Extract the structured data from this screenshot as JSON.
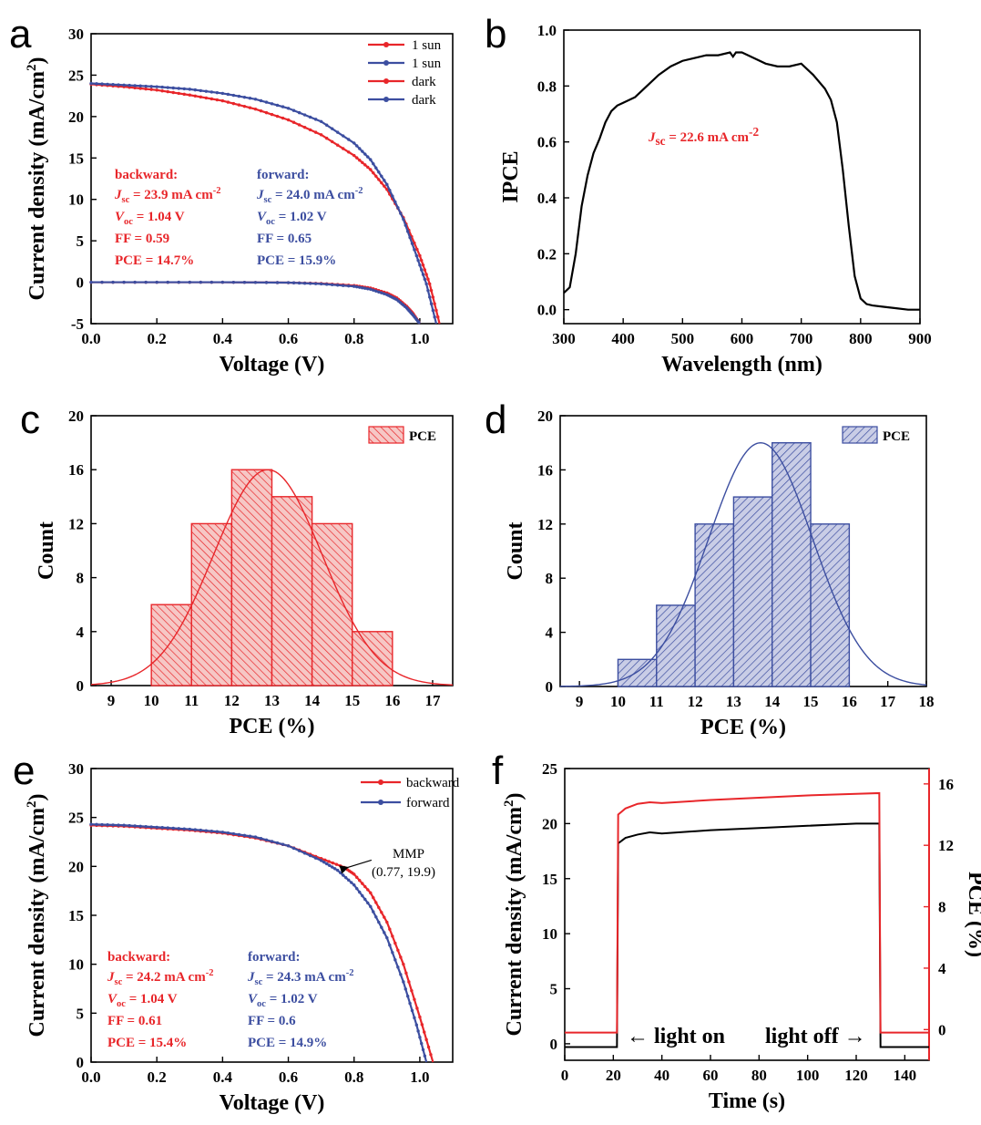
{
  "panel_labels": [
    "a",
    "b",
    "c",
    "d",
    "e",
    "f"
  ],
  "colors": {
    "red": "#e8262a",
    "blue": "#3c4ea0",
    "black": "#000000"
  },
  "chart_data": [
    {
      "id": "a",
      "type": "line",
      "xlabel": "Voltage (V)",
      "ylabel": "Current density (mA/cm²)",
      "xlim": [
        0,
        1.1
      ],
      "ylim": [
        -5,
        30
      ],
      "xticks": [
        "0.0",
        "0.2",
        "0.4",
        "0.6",
        "0.8",
        "1.0"
      ],
      "yticks": [
        "-5",
        "0",
        "5",
        "10",
        "15",
        "20",
        "25",
        "30"
      ],
      "legend": [
        "1 sun",
        "1 sun",
        "dark",
        "dark"
      ],
      "series": [
        {
          "name": "1 sun",
          "color": "#e8262a",
          "x": [
            0,
            0.1,
            0.2,
            0.3,
            0.4,
            0.5,
            0.6,
            0.7,
            0.8,
            0.85,
            0.9,
            0.95,
            1.0,
            1.03,
            1.06
          ],
          "y": [
            23.9,
            23.6,
            23.2,
            22.6,
            21.9,
            20.9,
            19.6,
            17.8,
            15.3,
            13.6,
            11.2,
            7.8,
            3.2,
            -0.2,
            -5
          ]
        },
        {
          "name": "1 sun",
          "color": "#3c4ea0",
          "x": [
            0,
            0.1,
            0.2,
            0.3,
            0.4,
            0.5,
            0.6,
            0.7,
            0.8,
            0.85,
            0.9,
            0.95,
            0.99,
            1.02,
            1.05
          ],
          "y": [
            24.0,
            23.8,
            23.6,
            23.3,
            22.8,
            22.1,
            21.0,
            19.4,
            16.8,
            14.8,
            11.8,
            7.6,
            3.2,
            -0.2,
            -5
          ]
        },
        {
          "name": "dark",
          "color": "#e8262a",
          "x": [
            0,
            0.2,
            0.4,
            0.6,
            0.7,
            0.8,
            0.85,
            0.9,
            0.93,
            0.96,
            0.98,
            1.0
          ],
          "y": [
            0,
            0,
            0,
            -0.05,
            -0.15,
            -0.4,
            -0.7,
            -1.3,
            -1.9,
            -2.9,
            -3.8,
            -5
          ]
        },
        {
          "name": "dark",
          "color": "#3c4ea0",
          "x": [
            0,
            0.2,
            0.4,
            0.6,
            0.7,
            0.8,
            0.85,
            0.9,
            0.93,
            0.96,
            0.98,
            1.0
          ],
          "y": [
            0,
            0,
            0,
            -0.05,
            -0.2,
            -0.5,
            -0.85,
            -1.5,
            -2.1,
            -3.1,
            -4.0,
            -5
          ]
        }
      ],
      "annotations": {
        "backward": [
          "backward:",
          "J",
          "sc",
          " = 23.9 mA cm",
          "-2",
          "V",
          "oc",
          " = 1.04 V",
          "FF = 0.59",
          "PCE = 14.7%"
        ],
        "forward": [
          "forward:",
          "J",
          "sc",
          " = 24.0 mA cm",
          "-2",
          "V",
          "oc",
          " = 1.02 V",
          "FF = 0.65",
          "PCE = 15.9%"
        ]
      }
    },
    {
      "id": "b",
      "type": "line",
      "xlabel": "Wavelength (nm)",
      "ylabel": "IPCE",
      "xlim": [
        300,
        900
      ],
      "ylim": [
        -0.05,
        1.0
      ],
      "xticks": [
        "300",
        "400",
        "500",
        "600",
        "700",
        "800",
        "900"
      ],
      "yticks": [
        "0.0",
        "0.2",
        "0.4",
        "0.6",
        "0.8",
        "1.0"
      ],
      "series": [
        {
          "name": "",
          "color": "#000000",
          "x": [
            300,
            310,
            320,
            330,
            340,
            350,
            360,
            370,
            380,
            390,
            400,
            420,
            440,
            460,
            480,
            500,
            520,
            540,
            560,
            580,
            585,
            590,
            600,
            620,
            640,
            660,
            680,
            700,
            710,
            720,
            740,
            750,
            760,
            770,
            780,
            790,
            800,
            810,
            820,
            840,
            860,
            880,
            900
          ],
          "y": [
            0.06,
            0.08,
            0.2,
            0.37,
            0.48,
            0.56,
            0.61,
            0.67,
            0.71,
            0.73,
            0.74,
            0.76,
            0.8,
            0.84,
            0.87,
            0.89,
            0.9,
            0.91,
            0.91,
            0.92,
            0.905,
            0.92,
            0.92,
            0.9,
            0.88,
            0.87,
            0.87,
            0.88,
            0.86,
            0.84,
            0.79,
            0.75,
            0.67,
            0.5,
            0.3,
            0.12,
            0.04,
            0.02,
            0.015,
            0.01,
            0.005,
            0.0,
            0.0
          ]
        }
      ],
      "annotation": [
        "J",
        "sc",
        " = 22.6 mA cm",
        "-2"
      ]
    },
    {
      "id": "c",
      "type": "bar",
      "xlabel": "PCE (%)",
      "ylabel": "Count",
      "xlim": [
        8.5,
        17.5
      ],
      "ylim": [
        0,
        20
      ],
      "xticks": [
        "9",
        "10",
        "11",
        "12",
        "13",
        "14",
        "15",
        "16",
        "17"
      ],
      "yticks": [
        "0",
        "4",
        "8",
        "12",
        "16",
        "20"
      ],
      "legend": [
        "PCE"
      ],
      "bin_edges": [
        10,
        11,
        12,
        13,
        14,
        15,
        16
      ],
      "values": [
        6,
        12,
        16,
        14,
        12,
        4
      ],
      "fit": {
        "mean": 12.9,
        "peak": 16,
        "sigma": 1.35
      }
    },
    {
      "id": "d",
      "type": "bar",
      "xlabel": "PCE (%)",
      "ylabel": "Count",
      "xlim": [
        8.5,
        18
      ],
      "ylim": [
        0,
        20
      ],
      "xticks": [
        "9",
        "10",
        "11",
        "12",
        "13",
        "14",
        "15",
        "16",
        "17",
        "18"
      ],
      "yticks": [
        "0",
        "4",
        "8",
        "12",
        "16",
        "20"
      ],
      "legend": [
        "PCE"
      ],
      "bin_edges": [
        10,
        11,
        12,
        13,
        14,
        15,
        16
      ],
      "values": [
        2,
        6,
        12,
        14,
        18,
        12
      ],
      "fit": {
        "mean": 13.7,
        "peak": 18,
        "sigma": 1.35
      }
    },
    {
      "id": "e",
      "type": "line",
      "xlabel": "Voltage (V)",
      "ylabel": "Current density (mA/cm²)",
      "xlim": [
        0,
        1.1
      ],
      "ylim": [
        0,
        30
      ],
      "xticks": [
        "0.0",
        "0.2",
        "0.4",
        "0.6",
        "0.8",
        "1.0"
      ],
      "yticks": [
        "0",
        "5",
        "10",
        "15",
        "20",
        "25",
        "30"
      ],
      "legend": [
        "backward",
        "forward"
      ],
      "series": [
        {
          "name": "backward",
          "color": "#e8262a",
          "x": [
            0,
            0.1,
            0.2,
            0.3,
            0.4,
            0.5,
            0.6,
            0.7,
            0.77,
            0.8,
            0.85,
            0.9,
            0.95,
            1.0,
            1.04
          ],
          "y": [
            24.2,
            24.1,
            23.9,
            23.7,
            23.4,
            22.9,
            22.1,
            20.8,
            19.9,
            19.2,
            17.3,
            14.3,
            10.0,
            4.6,
            0
          ]
        },
        {
          "name": "forward",
          "color": "#3c4ea0",
          "x": [
            0,
            0.1,
            0.2,
            0.3,
            0.4,
            0.5,
            0.6,
            0.7,
            0.75,
            0.8,
            0.85,
            0.9,
            0.95,
            0.99,
            1.02
          ],
          "y": [
            24.3,
            24.2,
            24.0,
            23.8,
            23.5,
            23.0,
            22.1,
            20.6,
            19.6,
            18.1,
            15.9,
            12.7,
            8.2,
            3.8,
            0
          ]
        }
      ],
      "mmp": {
        "label": "MMP",
        "coords": "(0.77, 19.9)"
      },
      "annotations": {
        "backward": [
          "backward:",
          "J",
          "sc",
          " = 24.2 mA cm",
          "-2",
          "V",
          "oc",
          " = 1.04 V",
          "FF = 0.61",
          "PCE = 15.4%"
        ],
        "forward": [
          "forward:",
          "J",
          "sc",
          " = 24.3 mA cm",
          "-2",
          "V",
          "oc",
          " = 1.02 V",
          "FF = 0.6",
          "PCE = 14.9%"
        ]
      }
    },
    {
      "id": "f",
      "type": "line",
      "xlabel": "Time (s)",
      "ylabel": "Current density (mA/cm²)",
      "y2label": "PCE (%)",
      "xlim": [
        0,
        150
      ],
      "ylim": [
        -1.5,
        25
      ],
      "y2lim": [
        -2,
        17
      ],
      "xticks": [
        "0",
        "20",
        "40",
        "60",
        "80",
        "100",
        "120",
        "140"
      ],
      "yticks": [
        "0",
        "5",
        "10",
        "15",
        "20",
        "25"
      ],
      "y2ticks": [
        "0",
        "4",
        "8",
        "12",
        "16"
      ],
      "series": [
        {
          "name": "",
          "axis": "left",
          "color": "#000000",
          "x": [
            0,
            21.5,
            22,
            25,
            30,
            35,
            40,
            60,
            80,
            100,
            120,
            129.5,
            130,
            150
          ],
          "y": [
            -0.3,
            -0.3,
            18.2,
            18.7,
            19.0,
            19.2,
            19.1,
            19.4,
            19.6,
            19.8,
            20.0,
            20.0,
            -0.3,
            -0.3
          ]
        },
        {
          "name": "",
          "axis": "right",
          "color": "#e8262a",
          "x": [
            0,
            21.5,
            22,
            25,
            30,
            35,
            40,
            60,
            80,
            100,
            120,
            129.5,
            130,
            150
          ],
          "y": [
            -0.2,
            -0.2,
            14.0,
            14.4,
            14.7,
            14.8,
            14.75,
            14.95,
            15.1,
            15.25,
            15.35,
            15.4,
            -0.2,
            -0.2
          ]
        }
      ],
      "annotations": {
        "on": "light on",
        "off": "light off"
      }
    }
  ]
}
